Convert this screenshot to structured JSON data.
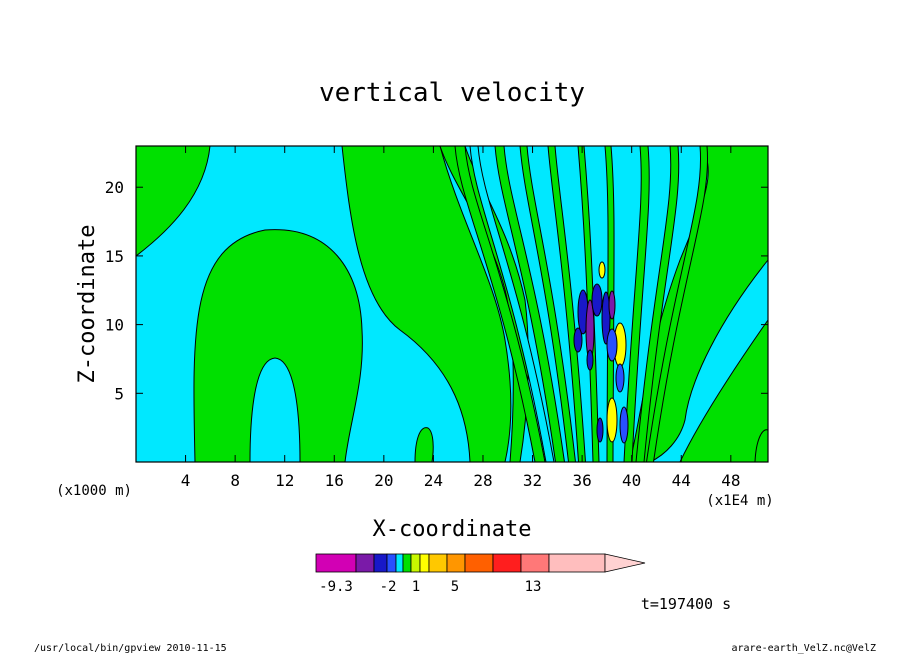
{
  "chart_data": {
    "type": "heatmap",
    "title": "vertical velocity",
    "xlabel": "X-coordinate",
    "ylabel": "Z-coordinate",
    "x_unit_label": "(x1000 m)",
    "x_unit_label_right": "(x1E4 m)",
    "xlim": [
      0,
      51
    ],
    "ylim": [
      0,
      23
    ],
    "x_ticks": [
      "4",
      "8",
      "12",
      "16",
      "20",
      "24",
      "28",
      "32",
      "36",
      "40",
      "44",
      "48"
    ],
    "y_ticks": [
      "5",
      "10",
      "15",
      "20"
    ],
    "colorbar": {
      "colors": [
        "#d200b4",
        "#7a1aa8",
        "#1818c8",
        "#2850ff",
        "#00e8ff",
        "#00e000",
        "#c8f800",
        "#ffff00",
        "#ffc800",
        "#ff9600",
        "#ff6000",
        "#ff1e1e",
        "#ff7878",
        "#ffbebe",
        "#ffd2d2"
      ],
      "labels": [
        "-9.3",
        "-2",
        "1",
        "5",
        "13"
      ]
    },
    "background_color": "#00e8ff",
    "positive_color": "#00e000"
  },
  "timestamp": "t=197400 s",
  "footer_left": "/usr/local/bin/gpview   2010-11-15",
  "footer_right": "arare-earth_VelZ.nc@VelZ"
}
